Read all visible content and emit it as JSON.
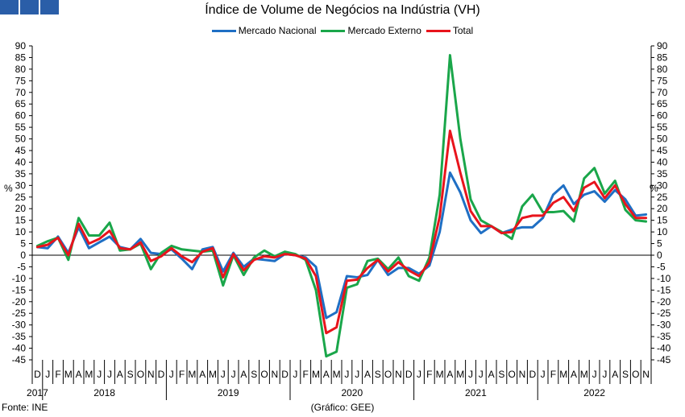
{
  "colors": {
    "nacional": "#1f6fc4",
    "externo": "#1aa64a",
    "total": "#e8141c",
    "logo": "#2a5ea8"
  },
  "logo_icon": "ine-logo-blocks",
  "footer": {
    "source": "Fonte: INE",
    "credit": "(Gráfico: GEE)"
  },
  "chart_data": {
    "type": "line",
    "title": "Índice de Volume de Negócios na Indústria (VH)",
    "ylabel_left": "%",
    "ylabel_right": "%",
    "ylim": [
      -45,
      90
    ],
    "yticks": [
      -45,
      -40,
      -35,
      -30,
      -25,
      -20,
      -15,
      -10,
      -5,
      0,
      5,
      10,
      15,
      20,
      25,
      30,
      35,
      40,
      45,
      50,
      55,
      60,
      65,
      70,
      75,
      80,
      85,
      90
    ],
    "grid": false,
    "legend_position": "top-center",
    "x": [
      "D",
      "J",
      "F",
      "M",
      "A",
      "M",
      "J",
      "J",
      "A",
      "S",
      "O",
      "N",
      "D",
      "J",
      "F",
      "M",
      "A",
      "M",
      "J",
      "J",
      "A",
      "S",
      "O",
      "N",
      "D",
      "J",
      "F",
      "M",
      "A",
      "M",
      "J",
      "J",
      "A",
      "S",
      "O",
      "N",
      "D",
      "J",
      "F",
      "M",
      "A",
      "M",
      "J",
      "J",
      "A",
      "S",
      "O",
      "N",
      "D",
      "J",
      "F",
      "M",
      "A",
      "M",
      "J",
      "J",
      "A",
      "S",
      "O",
      "N"
    ],
    "years": [
      {
        "label": "2017",
        "start": 0,
        "end": 0
      },
      {
        "label": "2018",
        "start": 1,
        "end": 12
      },
      {
        "label": "2019",
        "start": 13,
        "end": 24
      },
      {
        "label": "2020",
        "start": 25,
        "end": 36
      },
      {
        "label": "2021",
        "start": 37,
        "end": 48
      },
      {
        "label": "2022",
        "start": 49,
        "end": 59
      }
    ],
    "series": [
      {
        "name": "Mercado Nacional",
        "color_key": "nacional",
        "values": [
          3.5,
          3,
          8,
          1,
          12,
          3,
          5.5,
          8,
          3.5,
          2.5,
          7,
          1,
          0.5,
          2.5,
          -1.5,
          -6,
          2.5,
          3.5,
          -7,
          1,
          -5,
          -1.5,
          -2,
          -2.5,
          0.5,
          0,
          -1,
          -5,
          -27,
          -24.5,
          -9,
          -9.5,
          -8.5,
          -2,
          -8.5,
          -5.5,
          -5.5,
          -8,
          -4.5,
          10,
          35.5,
          27,
          15,
          9.5,
          12.5,
          9.5,
          11,
          12,
          12,
          16,
          26,
          30,
          22,
          26,
          27.5,
          23,
          28,
          24,
          17,
          17.5
        ]
      },
      {
        "name": "Mercado Externo",
        "color_key": "externo",
        "values": [
          4,
          6,
          7.5,
          -2,
          16,
          8.5,
          8.5,
          14,
          2,
          2.5,
          5,
          -6,
          1,
          4,
          2.5,
          2,
          1.5,
          2,
          -13,
          0,
          -8.5,
          -1,
          2,
          -0.5,
          1.5,
          0.5,
          -2,
          -15,
          -43.5,
          -41.5,
          -14,
          -12.5,
          -2.5,
          -1.5,
          -6,
          -1,
          -9,
          -11,
          -1,
          26,
          86,
          50,
          24,
          15,
          12.5,
          10,
          7,
          21,
          26,
          18.5,
          18.5,
          19,
          14.5,
          33,
          37.5,
          26.5,
          32,
          19.5,
          15,
          14.5
        ]
      },
      {
        "name": "Total",
        "color_key": "total",
        "values": [
          3.5,
          4.5,
          7.5,
          0,
          13.5,
          5,
          7,
          10.5,
          3,
          2.5,
          5.5,
          -2.5,
          -0.5,
          3,
          -0.5,
          -3,
          1.5,
          3,
          -9.5,
          0.5,
          -6.5,
          -2,
          -0.5,
          -1,
          0.5,
          0,
          -1.5,
          -9,
          -33.5,
          -31,
          -11,
          -10.5,
          -5.5,
          -2,
          -7,
          -3,
          -6.5,
          -9,
          -3,
          16.5,
          53.5,
          35.5,
          19,
          12.5,
          12.5,
          9.5,
          10,
          16,
          17,
          17,
          22.5,
          25,
          19,
          29,
          31.5,
          24.5,
          30,
          22,
          16,
          16
        ]
      }
    ]
  }
}
